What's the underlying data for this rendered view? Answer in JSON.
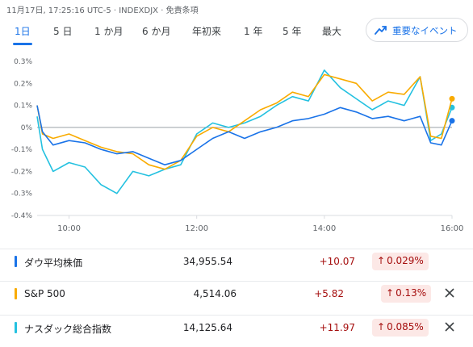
{
  "meta_text": "11月17日, 17:25:16 UTC-5 · INDEXDJX · 免責条項",
  "tabs": [
    {
      "label": "1日",
      "active": true
    },
    {
      "label": "5 日"
    },
    {
      "label": "1 か月"
    },
    {
      "label": "6 か月"
    },
    {
      "label": "年初来"
    },
    {
      "label": "1 年"
    },
    {
      "label": "5 年"
    },
    {
      "label": "最大"
    }
  ],
  "events_button": {
    "label": "重要なイベント",
    "icon": "trending-icon"
  },
  "chart_data": {
    "type": "line",
    "title": "",
    "xlabel": "",
    "ylabel": "",
    "x_ticks": [
      "10:00",
      "12:00",
      "14:00",
      "16:00"
    ],
    "y_ticks": [
      "0.3%",
      "0.2%",
      "0.1%",
      "0%",
      "-0.1%",
      "-0.2%",
      "-0.3%",
      "-0.4%"
    ],
    "ylim": [
      -0.4,
      0.3
    ],
    "xlim": [
      "09:30",
      "16:00"
    ],
    "grid": false,
    "baseline": 0,
    "series": [
      {
        "name": "ダウ平均株価",
        "color": "#1a73e8",
        "x": [
          "09:30",
          "09:35",
          "09:45",
          "10:00",
          "10:15",
          "10:30",
          "10:45",
          "11:00",
          "11:15",
          "11:30",
          "11:45",
          "12:00",
          "12:15",
          "12:30",
          "12:45",
          "13:00",
          "13:15",
          "13:30",
          "13:45",
          "14:00",
          "14:15",
          "14:30",
          "14:45",
          "15:00",
          "15:15",
          "15:30",
          "15:40",
          "15:50",
          "16:00"
        ],
        "values": [
          0.1,
          -0.02,
          -0.08,
          -0.06,
          -0.07,
          -0.1,
          -0.12,
          -0.11,
          -0.14,
          -0.17,
          -0.15,
          -0.1,
          -0.05,
          -0.02,
          -0.05,
          -0.02,
          0.0,
          0.03,
          0.04,
          0.06,
          0.09,
          0.07,
          0.04,
          0.05,
          0.03,
          0.05,
          -0.07,
          -0.08,
          0.03
        ]
      },
      {
        "name": "S&P 500",
        "color": "#f9ab00",
        "x": [
          "09:30",
          "09:35",
          "09:45",
          "10:00",
          "10:15",
          "10:30",
          "10:45",
          "11:00",
          "11:15",
          "11:30",
          "11:45",
          "12:00",
          "12:15",
          "12:30",
          "12:45",
          "13:00",
          "13:15",
          "13:30",
          "13:45",
          "14:00",
          "14:15",
          "14:30",
          "14:45",
          "15:00",
          "15:15",
          "15:30",
          "15:40",
          "15:50",
          "16:00"
        ],
        "values": [
          0.1,
          -0.03,
          -0.05,
          -0.03,
          -0.06,
          -0.09,
          -0.11,
          -0.12,
          -0.17,
          -0.19,
          -0.15,
          -0.04,
          0.0,
          -0.02,
          0.03,
          0.08,
          0.11,
          0.16,
          0.14,
          0.24,
          0.22,
          0.2,
          0.12,
          0.16,
          0.15,
          0.23,
          -0.04,
          -0.05,
          0.13
        ]
      },
      {
        "name": "ナスダック総合指数",
        "color": "#24c1e0",
        "x": [
          "09:30",
          "09:35",
          "09:45",
          "10:00",
          "10:15",
          "10:30",
          "10:45",
          "11:00",
          "11:15",
          "11:30",
          "11:45",
          "12:00",
          "12:15",
          "12:30",
          "12:45",
          "13:00",
          "13:15",
          "13:30",
          "13:45",
          "14:00",
          "14:15",
          "14:30",
          "14:45",
          "15:00",
          "15:15",
          "15:30",
          "15:40",
          "15:50",
          "16:00"
        ],
        "values": [
          0.05,
          -0.1,
          -0.2,
          -0.16,
          -0.18,
          -0.26,
          -0.3,
          -0.2,
          -0.22,
          -0.19,
          -0.17,
          -0.03,
          0.02,
          0.0,
          0.02,
          0.05,
          0.1,
          0.14,
          0.12,
          0.26,
          0.18,
          0.13,
          0.08,
          0.12,
          0.1,
          0.23,
          -0.06,
          -0.03,
          0.09
        ]
      }
    ]
  },
  "legend": [
    {
      "name": "ダウ平均株価",
      "value": "34,955.54",
      "change": "+10.07",
      "pct": "0.029%",
      "closable": false,
      "color": "#1a73e8"
    },
    {
      "name": "S&P 500",
      "value": "4,514.06",
      "change": "+5.82",
      "pct": "0.13%",
      "closable": true,
      "color": "#f9ab00"
    },
    {
      "name": "ナスダック総合指数",
      "value": "14,125.64",
      "change": "+11.97",
      "pct": "0.085%",
      "closable": true,
      "color": "#24c1e0"
    }
  ],
  "close_icon": "close-icon",
  "up_arrow": "↑"
}
